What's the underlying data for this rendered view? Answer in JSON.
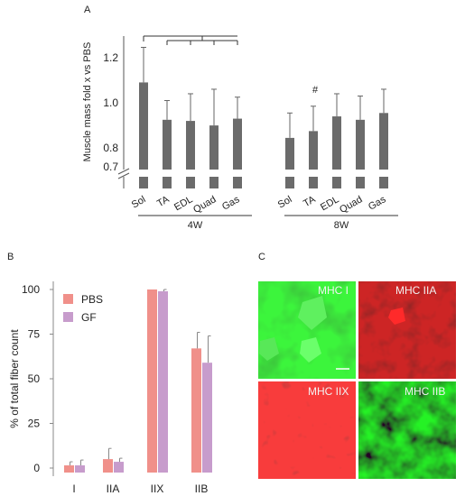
{
  "panels": {
    "a": {
      "label": "A"
    },
    "b": {
      "label": "B"
    },
    "c": {
      "label": "C"
    }
  },
  "colors": {
    "bar_a": "#6b6b6b",
    "pbs": "#f0908a",
    "gf": "#c79ccc",
    "micro_green": "#22aa22",
    "micro_red": "#cc1a1a"
  },
  "chart_data": [
    {
      "type": "bar",
      "panel": "A",
      "ylabel": "Muscle mass fold x vs PBS",
      "yticks": [
        "0.7",
        "0.8",
        "1.0",
        "1.2"
      ],
      "axis_break": true,
      "groups": [
        {
          "name": "4W",
          "categories": [
            "Sol",
            "TA",
            "EDL",
            "Quad",
            "Gas"
          ],
          "values": [
            1.09,
            0.925,
            0.92,
            0.9,
            0.93
          ],
          "errors": [
            0.155,
            0.085,
            0.12,
            0.16,
            0.095
          ]
        },
        {
          "name": "8W",
          "categories": [
            "Sol",
            "TA",
            "EDL",
            "Quad",
            "Gas"
          ],
          "values": [
            0.845,
            0.875,
            0.94,
            0.925,
            0.955
          ],
          "errors": [
            0.11,
            0.11,
            0.1,
            0.105,
            0.105
          ]
        }
      ],
      "annotations": [
        {
          "text": "#",
          "group": "8W",
          "category": "TA"
        }
      ],
      "significance_bracket": {
        "group": "4W",
        "from": "Sol",
        "to": [
          "TA",
          "EDL",
          "Quad",
          "Gas"
        ]
      }
    },
    {
      "type": "bar",
      "panel": "B",
      "ylabel": "% of total fiber count",
      "ylim": [
        0,
        100
      ],
      "yticks": [
        "0",
        "25",
        "50",
        "75",
        "100"
      ],
      "categories": [
        "I",
        "IIA",
        "IIX",
        "IIB"
      ],
      "legend_position": "top-left",
      "series": [
        {
          "name": "PBS",
          "values": [
            1.5,
            5,
            100,
            67
          ],
          "errors": [
            2,
            6,
            0,
            9
          ]
        },
        {
          "name": "GF",
          "values": [
            1.5,
            3.5,
            99,
            59
          ],
          "errors": [
            3,
            2,
            1,
            15
          ]
        }
      ]
    }
  ],
  "micrographs": [
    {
      "label": "MHC I",
      "stain": "green"
    },
    {
      "label": "MHC IIA",
      "stain": "red"
    },
    {
      "label": "MHC IIX",
      "stain": "red"
    },
    {
      "label": "MHC IIB",
      "stain": "green"
    }
  ]
}
